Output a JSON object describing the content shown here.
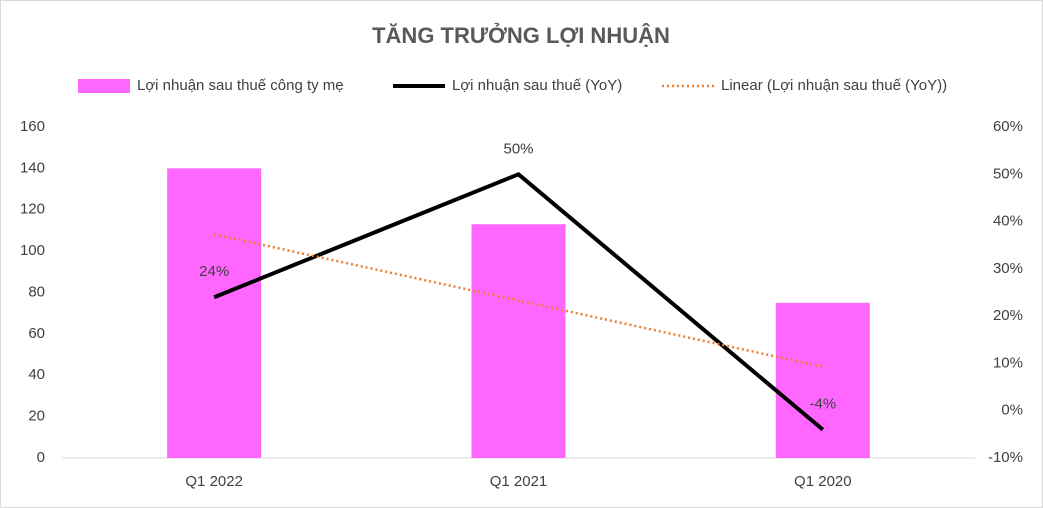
{
  "chart_data": {
    "type": "bar",
    "title": "TĂNG TRƯỞNG LỢI NHUẬN",
    "categories": [
      "Q1 2022",
      "Q1 2021",
      "Q1 2020"
    ],
    "series": [
      {
        "name": "Lợi nhuận sau thuế công ty mẹ",
        "type": "bar",
        "color": "#ff66ff",
        "values": [
          140,
          113,
          75
        ]
      },
      {
        "name": "Lợi nhuận sau thuế (YoY)",
        "type": "line",
        "axis": "y2",
        "color": "#000000",
        "values": [
          24,
          50,
          -4
        ],
        "value_labels": [
          "24%",
          "50%",
          "-4%"
        ]
      },
      {
        "name": "Linear (Lợi nhuận sau thuế (YoY))",
        "type": "line",
        "axis": "y2",
        "style": "dotted",
        "color": "#ed7d31",
        "values": [
          37.3,
          23.3,
          9.3
        ]
      }
    ],
    "ylim": [
      0,
      160
    ],
    "yticks": [
      0,
      20,
      40,
      60,
      80,
      100,
      120,
      140,
      160
    ],
    "y2lim": [
      -10,
      60
    ],
    "y2ticks": [
      {
        "value": -10,
        "label": "-10%"
      },
      {
        "value": 0,
        "label": "0%"
      },
      {
        "value": 10,
        "label": "10%"
      },
      {
        "value": 20,
        "label": "20%"
      },
      {
        "value": 30,
        "label": "30%"
      },
      {
        "value": 40,
        "label": "40%"
      },
      {
        "value": 50,
        "label": "50%"
      },
      {
        "value": 60,
        "label": "60%"
      }
    ],
    "legend": "top",
    "grid": false
  }
}
